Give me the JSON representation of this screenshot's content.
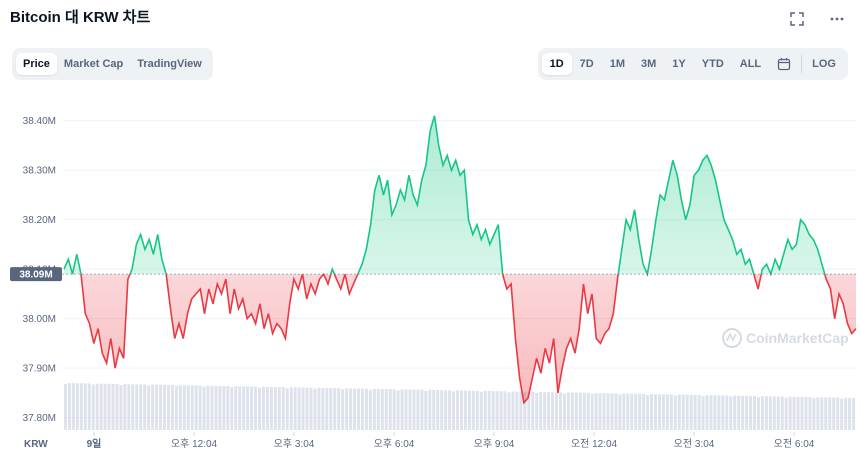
{
  "header": {
    "title": "Bitcoin 대 KRW 차트"
  },
  "toolbar_left": {
    "items": [
      "Price",
      "Market Cap",
      "TradingView"
    ],
    "active": "Price"
  },
  "toolbar_right": {
    "ranges": [
      "1D",
      "7D",
      "1M",
      "3M",
      "1Y",
      "YTD",
      "ALL"
    ],
    "active": "1D",
    "log_label": "LOG"
  },
  "icons": {
    "fullscreen": "fullscreen-icon",
    "more": "more-icon",
    "calendar": "calendar-icon"
  },
  "watermark": "CoinMarketCap",
  "chart_data": {
    "type": "line",
    "currency_label": "KRW",
    "y_tick_labels": [
      "38.40M",
      "38.30M",
      "38.20M",
      "38.10M",
      "38.00M",
      "37.90M",
      "37.80M"
    ],
    "y_ticks": [
      38400000,
      38300000,
      38200000,
      38100000,
      38000000,
      37900000,
      37800000
    ],
    "ylim": [
      37775000,
      38450000
    ],
    "baseline": 38090000,
    "baseline_label": "38.09M",
    "x_tick_labels": [
      "9일",
      "오후 12:04",
      "오후 3:04",
      "오후 6:04",
      "오후 9:04",
      "오전 12:04",
      "오전 3:04",
      "오전 6:04"
    ],
    "colors": {
      "up": "#16c784",
      "down": "#ea3943",
      "volume": "#cfd6e4"
    },
    "values": [
      38100000,
      38120000,
      38090000,
      38130000,
      38090000,
      38010000,
      37990000,
      37950000,
      37980000,
      37930000,
      37910000,
      37960000,
      37900000,
      37940000,
      37920000,
      38080000,
      38100000,
      38150000,
      38170000,
      38140000,
      38160000,
      38130000,
      38170000,
      38120000,
      38090000,
      38020000,
      37960000,
      37990000,
      37960000,
      38010000,
      38040000,
      38050000,
      38060000,
      38010000,
      38060000,
      38030000,
      38070000,
      38050000,
      38080000,
      38010000,
      38060000,
      38020000,
      38040000,
      38000000,
      38010000,
      37990000,
      38030000,
      37980000,
      38010000,
      37970000,
      37990000,
      37980000,
      37960000,
      38030000,
      38080000,
      38060000,
      38090000,
      38040000,
      38070000,
      38050000,
      38080000,
      38090000,
      38070000,
      38100000,
      38080000,
      38060000,
      38090000,
      38050000,
      38070000,
      38090000,
      38110000,
      38140000,
      38190000,
      38260000,
      38290000,
      38250000,
      38280000,
      38210000,
      38230000,
      38260000,
      38240000,
      38290000,
      38250000,
      38230000,
      38280000,
      38310000,
      38380000,
      38410000,
      38350000,
      38310000,
      38330000,
      38300000,
      38320000,
      38290000,
      38300000,
      38200000,
      38170000,
      38190000,
      38160000,
      38180000,
      38150000,
      38170000,
      38190000,
      38090000,
      38060000,
      38070000,
      37960000,
      37880000,
      37830000,
      37840000,
      37880000,
      37920000,
      37890000,
      37940000,
      37910000,
      37960000,
      37850000,
      37900000,
      37940000,
      37960000,
      37930000,
      37980000,
      38070000,
      38010000,
      38050000,
      37960000,
      37950000,
      37970000,
      37980000,
      38010000,
      38080000,
      38140000,
      38200000,
      38180000,
      38220000,
      38160000,
      38110000,
      38090000,
      38140000,
      38200000,
      38250000,
      38240000,
      38280000,
      38320000,
      38290000,
      38240000,
      38200000,
      38230000,
      38290000,
      38300000,
      38320000,
      38330000,
      38310000,
      38280000,
      38240000,
      38200000,
      38180000,
      38160000,
      38130000,
      38140000,
      38110000,
      38120000,
      38090000,
      38060000,
      38100000,
      38110000,
      38090000,
      38120000,
      38100000,
      38130000,
      38160000,
      38140000,
      38150000,
      38200000,
      38190000,
      38170000,
      38160000,
      38140000,
      38110000,
      38080000,
      38060000,
      38000000,
      38050000,
      38030000,
      37990000,
      37970000,
      37980000
    ]
  }
}
